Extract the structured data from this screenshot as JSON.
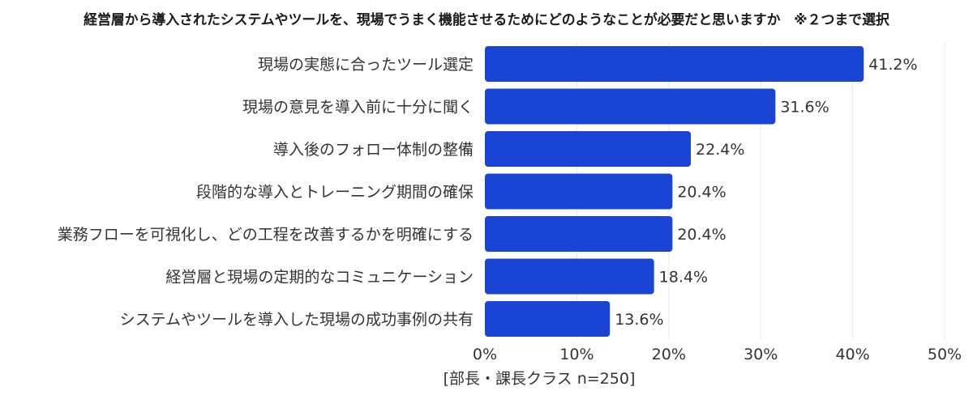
{
  "chart_data": {
    "type": "bar",
    "orientation": "horizontal",
    "title": "経営層から導入されたシステムやツールを、現場でうまく機能させるためにどのようなことが必要だと思いますか　※２つまで選択",
    "xlabel": "[部長・課長クラス n=250]",
    "ylabel": "",
    "categories": [
      "現場の実態に合ったツール選定",
      "現場の意見を導入前に十分に聞く",
      "導入後のフォロー体制の整備",
      "段階的な導入とトレーニング期間の確保",
      "業務フローを可視化し、どの工程を改善するかを明確にする",
      "経営層と現場の定期的なコミュニケーション",
      "システムやツールを導入した現場の成功事例の共有"
    ],
    "values": [
      41.2,
      31.6,
      22.4,
      20.4,
      20.4,
      18.4,
      13.6
    ],
    "value_labels": [
      "41.2%",
      "31.6%",
      "22.4%",
      "20.4%",
      "20.4%",
      "18.4%",
      "13.6%"
    ],
    "xlim": [
      0,
      50
    ],
    "ticks": [
      0,
      10,
      20,
      30,
      40,
      50
    ],
    "tick_labels": [
      "0%",
      "10%",
      "20%",
      "30%",
      "40%",
      "50%"
    ],
    "grid": true,
    "legend": "none",
    "bar_color": "#1a44d4",
    "grid_color": "#e6ebf5"
  }
}
